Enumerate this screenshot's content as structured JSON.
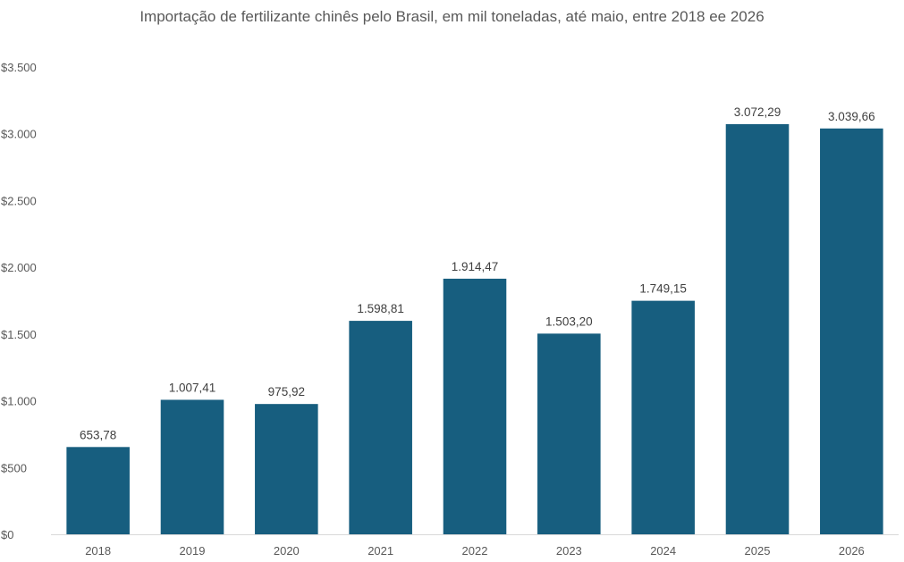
{
  "chart_data": {
    "type": "bar",
    "title": "Importação de fertilizante chinês pelo Brasil, em mil toneladas, até maio, entre 2018 ee 2026",
    "categories": [
      "2018",
      "2019",
      "2020",
      "2021",
      "2022",
      "2023",
      "2024",
      "2025",
      "2026"
    ],
    "values": [
      653.78,
      1007.41,
      975.92,
      1598.81,
      1914.47,
      1503.2,
      1749.15,
      3072.29,
      3039.66
    ],
    "data_labels": [
      "653,78",
      "1.007,41",
      "975,92",
      "1.598,81",
      "1.914,47",
      "1.503,20",
      "1.749,15",
      "3.072,29",
      "3.039,66"
    ],
    "ylim": [
      0,
      3500
    ],
    "yticks": [
      0,
      500,
      1000,
      1500,
      2000,
      2500,
      3000,
      3500
    ],
    "ytick_labels": [
      "$0",
      "$500",
      "$1.000",
      "$1.500",
      "$2.000",
      "$2.500",
      "$3.000",
      "$3.500"
    ],
    "xlabel": "",
    "ylabel": "",
    "grid": false,
    "legend": "none",
    "bar_color": "#175e7f"
  }
}
